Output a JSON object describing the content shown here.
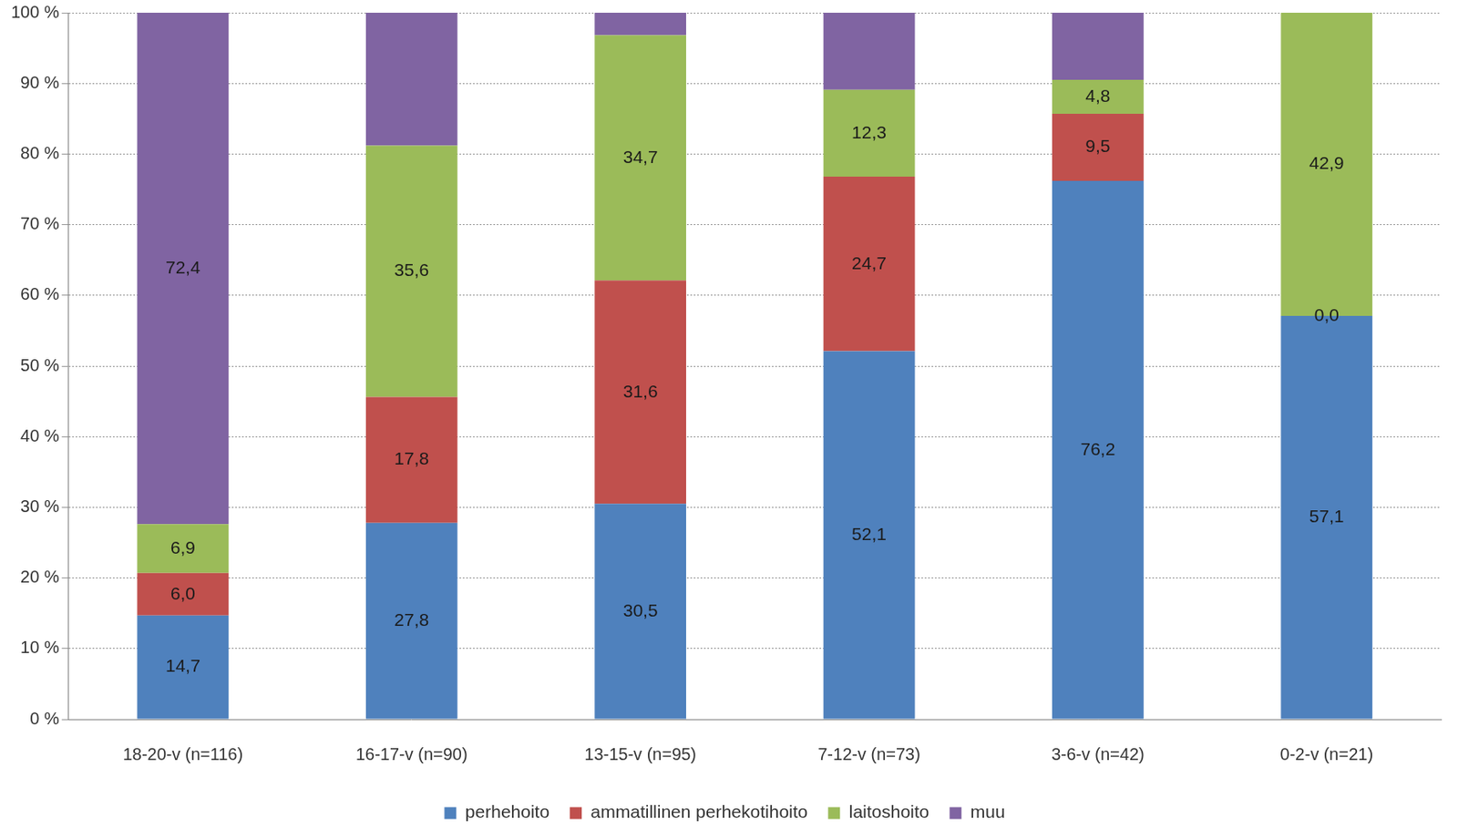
{
  "chart_data": {
    "type": "bar",
    "stacked": true,
    "data_labels": true,
    "grid": true,
    "legend": "bottom",
    "categories": [
      "18-20-v (n=116)",
      "16-17-v (n=90)",
      "13-15-v (n=95)",
      "7-12-v (n=73)",
      "3-6-v (n=42)",
      "0-2-v (n=21)"
    ],
    "series": [
      {
        "name": "perhehoito",
        "color": "#4F81BD",
        "values": [
          14.7,
          27.8,
          30.5,
          52.1,
          76.2,
          57.1
        ],
        "value_labels": [
          "14,7",
          "27,8",
          "30,5",
          "52,1",
          "76,2",
          "57,1"
        ]
      },
      {
        "name": "ammatillinen perhekotihoito",
        "color": "#C0504D",
        "values": [
          6.0,
          17.8,
          31.6,
          24.7,
          9.5,
          0.0
        ],
        "value_labels": [
          "6,0",
          "17,8",
          "31,6",
          "24,7",
          "9,5",
          "0,0"
        ]
      },
      {
        "name": "laitoshoito",
        "color": "#9BBB59",
        "values": [
          6.9,
          35.6,
          34.7,
          12.3,
          4.8,
          42.9
        ],
        "value_labels": [
          "6,9",
          "35,6",
          "34,7",
          "12,3",
          "4,8",
          "42,9"
        ]
      },
      {
        "name": "muu",
        "color": "#8064A2",
        "values": [
          72.4,
          18.8,
          3.2,
          10.9,
          9.5,
          0.0
        ],
        "value_labels": [
          "72,4",
          null,
          null,
          null,
          null,
          null
        ]
      }
    ],
    "ylim": [
      0,
      100
    ],
    "yticks": [
      {
        "value": 0,
        "label": "0 %"
      },
      {
        "value": 10,
        "label": "10 %"
      },
      {
        "value": 20,
        "label": "20 %"
      },
      {
        "value": 30,
        "label": "30 %"
      },
      {
        "value": 40,
        "label": "40 %"
      },
      {
        "value": 50,
        "label": "50 %"
      },
      {
        "value": 60,
        "label": "60 %"
      },
      {
        "value": 70,
        "label": "70 %"
      },
      {
        "value": 80,
        "label": "80 %"
      },
      {
        "value": 90,
        "label": "90 %"
      },
      {
        "value": 100,
        "label": "100 %"
      }
    ]
  }
}
